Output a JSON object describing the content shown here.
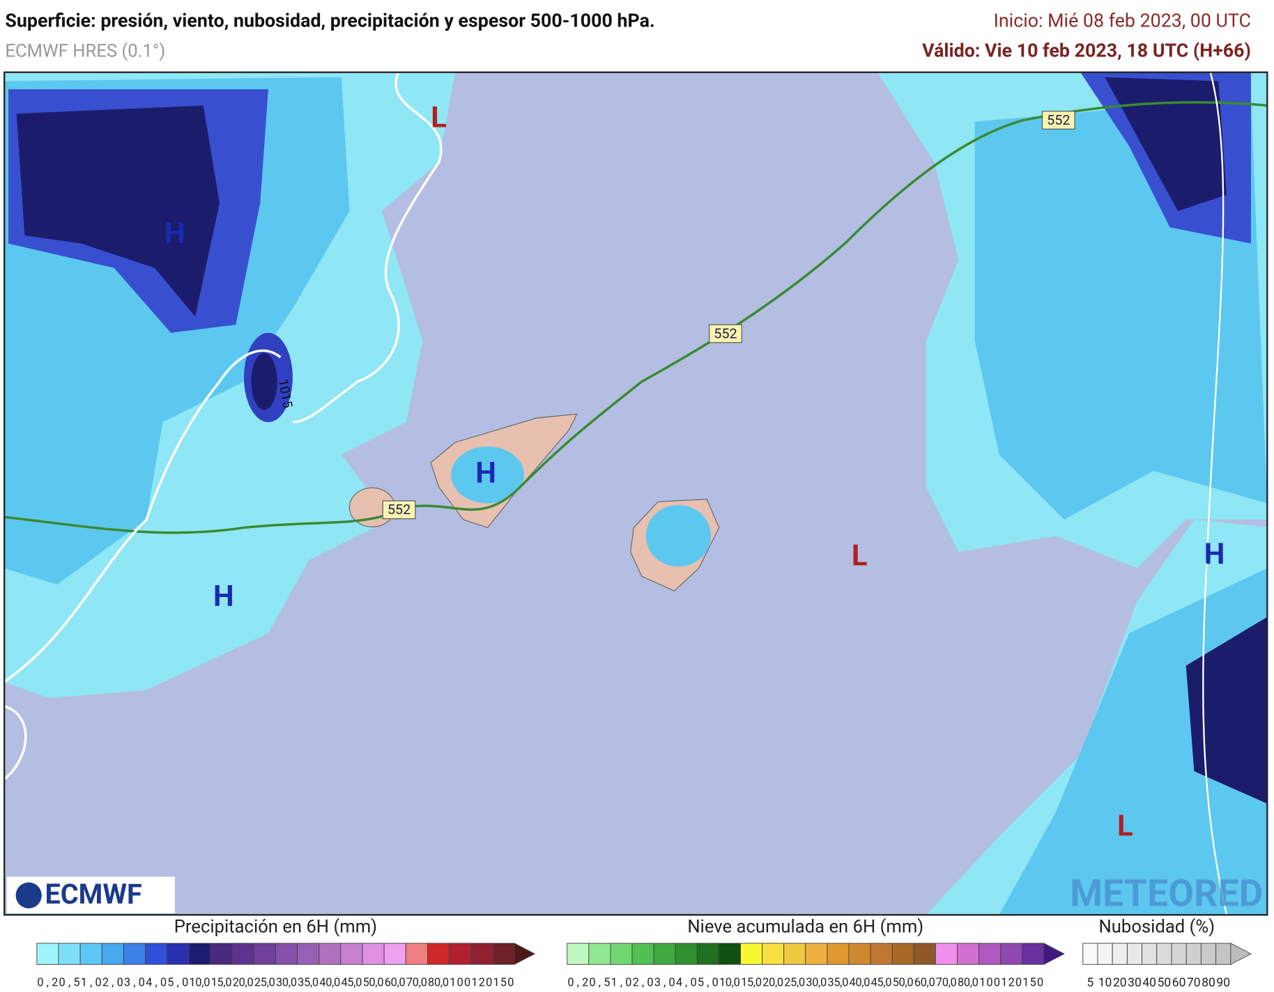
{
  "header": {
    "title": "Superficie: presión, viento, nubosidad, precipitación y espesor 500-1000 hPa.",
    "model": "ECMWF HRES (0.1°)",
    "init": "Inicio: Mié 08 feb 2023, 00 UTC",
    "valid": "Válido: Vie 10 feb 2023, 18 UTC (H+66)"
  },
  "map": {
    "pressure_centers": [
      "H",
      "H",
      "H",
      "H",
      "L",
      "L",
      "L"
    ],
    "isoline_labels": [
      "552",
      "552",
      "552",
      "1015"
    ]
  },
  "logos": [
    "ECMWF",
    "METEORED"
  ],
  "legends": [
    {
      "title": "Precipitación en 6H (mm)",
      "labels": [
        "0,2",
        "0,5",
        "1,0",
        "2,0",
        "3,0",
        "4,0",
        "5,0",
        "10,0",
        "15,0",
        "20,0",
        "25,0",
        "30,0",
        "35,0",
        "40,0",
        "45,0",
        "50,0",
        "60,0",
        "70,0",
        "80,0",
        "100",
        "120",
        "150"
      ]
    },
    {
      "title": "Nieve acumulada en 6H (mm)",
      "labels": [
        "0,2",
        "0,5",
        "1,0",
        "2,0",
        "3,0",
        "4,0",
        "5,0",
        "10,0",
        "15,0",
        "20,0",
        "25,0",
        "30,0",
        "35,0",
        "40,0",
        "45,0",
        "50,0",
        "60,0",
        "70,0",
        "80,0",
        "100",
        "120",
        "150"
      ]
    },
    {
      "title": "Nubosidad (%)",
      "labels": [
        "5",
        "10",
        "20",
        "30",
        "40",
        "50",
        "60",
        "70",
        "80",
        "90"
      ]
    }
  ]
}
